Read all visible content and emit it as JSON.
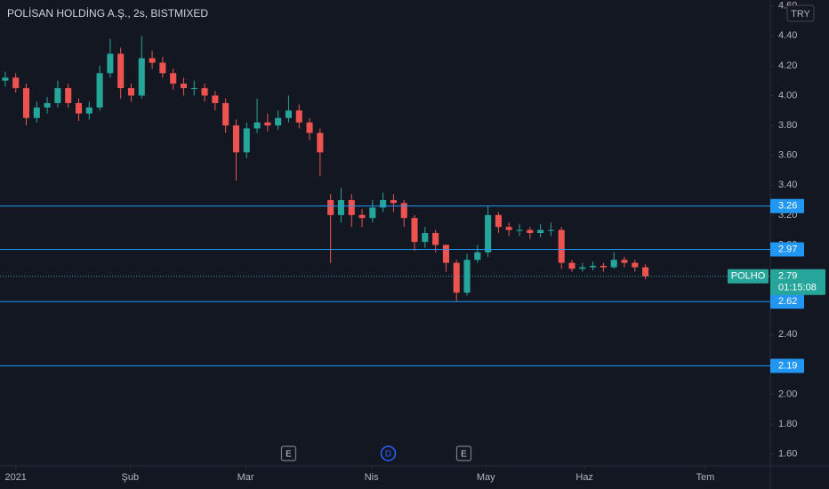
{
  "chart_data": {
    "type": "candlestick",
    "title": "POLİSAN HOLDİNG A.Ş., 2s, BISTMIXED",
    "currency": "TRY",
    "up_color": "#26a69a",
    "down_color": "#ef5350",
    "open": [
      4.1,
      4.12,
      4.05,
      3.85,
      3.92,
      3.95,
      4.05,
      3.95,
      3.88,
      3.92,
      4.15,
      4.28,
      4.05,
      4.0,
      4.25,
      4.22,
      4.15,
      4.08,
      4.05,
      4.05,
      4.0,
      3.95,
      3.8,
      3.62,
      3.78,
      3.82,
      3.8,
      3.85,
      3.9,
      3.82,
      3.75,
      3.3,
      3.2,
      3.3,
      3.2,
      3.18,
      3.25,
      3.3,
      3.28,
      3.18,
      3.02,
      3.08,
      3.0,
      2.88,
      2.68,
      2.9,
      2.95,
      3.2,
      3.12,
      3.1,
      3.1,
      3.08,
      3.1,
      3.1,
      2.88,
      2.84,
      2.85,
      2.86,
      2.85,
      2.9,
      2.88,
      2.85
    ],
    "high": [
      4.16,
      4.15,
      4.08,
      3.96,
      3.99,
      4.1,
      4.08,
      3.98,
      3.96,
      4.2,
      4.38,
      4.32,
      4.08,
      4.4,
      4.3,
      4.26,
      4.18,
      4.12,
      4.1,
      4.08,
      4.03,
      3.98,
      3.84,
      3.82,
      3.98,
      3.88,
      3.9,
      4.0,
      3.94,
      3.85,
      3.78,
      3.34,
      3.38,
      3.34,
      3.24,
      3.3,
      3.35,
      3.34,
      3.3,
      3.2,
      3.12,
      3.1,
      3.0,
      2.9,
      2.94,
      3.0,
      3.26,
      3.22,
      3.15,
      3.14,
      3.12,
      3.14,
      3.15,
      3.12,
      2.9,
      2.88,
      2.89,
      2.88,
      2.95,
      2.92,
      2.9,
      2.87
    ],
    "low": [
      4.06,
      4.02,
      3.8,
      3.82,
      3.88,
      3.92,
      3.92,
      3.83,
      3.84,
      3.9,
      4.12,
      3.98,
      3.96,
      3.98,
      4.18,
      4.12,
      4.04,
      4.0,
      4.0,
      3.96,
      3.9,
      3.75,
      3.43,
      3.58,
      3.75,
      3.76,
      3.77,
      3.82,
      3.78,
      3.7,
      3.46,
      2.88,
      3.15,
      3.12,
      3.12,
      3.15,
      3.22,
      3.22,
      3.12,
      2.96,
      2.98,
      2.95,
      2.82,
      2.62,
      2.66,
      2.88,
      2.92,
      3.08,
      3.06,
      3.06,
      3.04,
      3.05,
      3.06,
      2.84,
      2.82,
      2.82,
      2.83,
      2.82,
      2.84,
      2.85,
      2.82,
      2.77
    ],
    "close": [
      4.12,
      4.05,
      3.85,
      3.92,
      3.95,
      4.05,
      3.95,
      3.88,
      3.92,
      4.15,
      4.28,
      4.05,
      4.0,
      4.25,
      4.22,
      4.15,
      4.08,
      4.05,
      4.05,
      4.0,
      3.95,
      3.8,
      3.62,
      3.78,
      3.82,
      3.8,
      3.85,
      3.9,
      3.82,
      3.75,
      3.62,
      3.2,
      3.3,
      3.2,
      3.18,
      3.25,
      3.3,
      3.28,
      3.18,
      3.02,
      3.08,
      3.0,
      2.88,
      2.68,
      2.9,
      2.95,
      3.2,
      3.12,
      3.1,
      3.1,
      3.08,
      3.1,
      3.1,
      2.88,
      2.84,
      2.85,
      2.86,
      2.85,
      2.9,
      2.88,
      2.85,
      2.79
    ],
    "xlim": [
      -0.5,
      72.9
    ],
    "xticks": [
      {
        "value": 1,
        "label": "2021"
      },
      {
        "value": 11.9,
        "label": "Şub"
      },
      {
        "value": 22.9,
        "label": "Mar"
      },
      {
        "value": 34.9,
        "label": "Nis"
      },
      {
        "value": 45.8,
        "label": "May"
      },
      {
        "value": 55.2,
        "label": "Haz"
      },
      {
        "value": 66.7,
        "label": "Tem"
      }
    ],
    "ylim": [
      1.52,
      4.64
    ],
    "yticks": [
      {
        "value": 1.6,
        "label": "1.60"
      },
      {
        "value": 1.8,
        "label": "1.80"
      },
      {
        "value": 2.0,
        "label": "2.00"
      },
      {
        "value": 2.2,
        "label": "2.20"
      },
      {
        "value": 2.4,
        "label": "2.40"
      },
      {
        "value": 2.6,
        "label": "2.60"
      },
      {
        "value": 2.8,
        "label": "2.80"
      },
      {
        "value": 3.0,
        "label": "3.00"
      },
      {
        "value": 3.2,
        "label": "3.20"
      },
      {
        "value": 3.4,
        "label": "3.40"
      },
      {
        "value": 3.6,
        "label": "3.60"
      },
      {
        "value": 3.8,
        "label": "3.80"
      },
      {
        "value": 4.0,
        "label": "4.00"
      },
      {
        "value": 4.2,
        "label": "4.20"
      },
      {
        "value": 4.4,
        "label": "4.40"
      },
      {
        "value": 4.6,
        "label": "4.60"
      }
    ],
    "levels": [
      3.26,
      2.97,
      2.62,
      2.19
    ],
    "level_color": "#2196f3",
    "last": {
      "symbol": "POLHO",
      "price": 2.79,
      "countdown": "01:15:08"
    },
    "events": [
      {
        "label": "E",
        "x": 27
      },
      {
        "label": "D",
        "x": 36.5
      },
      {
        "label": "E",
        "x": 43.7
      }
    ]
  }
}
